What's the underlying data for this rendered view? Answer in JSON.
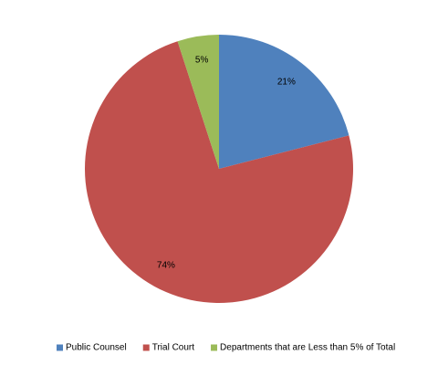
{
  "chart_data": {
    "type": "pie",
    "categories": [
      "Public Counsel",
      "Trial Court",
      "Departments that are Less than 5% of Total"
    ],
    "values": [
      21,
      74,
      5
    ],
    "value_labels": [
      "21%",
      "74%",
      "5%"
    ],
    "colors": [
      "#4f81bd",
      "#c0504d",
      "#9bbb59"
    ],
    "legend": "bottom"
  }
}
